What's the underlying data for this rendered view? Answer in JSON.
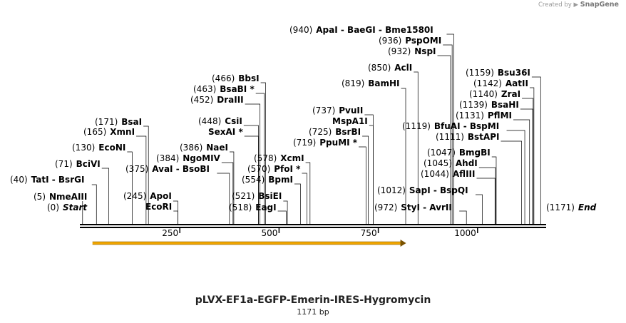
{
  "credit": {
    "prefix": "Created by",
    "brand": "SnapGene"
  },
  "plasmid": {
    "name": "pLVX-EF1a-EGFP-Emerin-IRES-Hygromycin",
    "length_label": "1171 bp"
  },
  "map": {
    "length": 1171,
    "ticks": [
      {
        "value": 250,
        "label": "250"
      },
      {
        "value": 500,
        "label": "500"
      },
      {
        "value": 750,
        "label": "750"
      },
      {
        "value": 1000,
        "label": "1000"
      }
    ],
    "feature": {
      "start": 30,
      "end": 820,
      "color": "#f0a500",
      "direction": "forward"
    },
    "labels": [
      {
        "pos": 0,
        "p": "(0)",
        "n": "Start",
        "style": "em"
      },
      {
        "pos": 5,
        "p": "(5)",
        "n": "NmeAIII"
      },
      {
        "pos": 40,
        "p": "(40)",
        "n": "TatI  -  BsrGI"
      },
      {
        "pos": 71,
        "p": "(71)",
        "n": "BciVI"
      },
      {
        "pos": 130,
        "p": "(130)",
        "n": "EcoNI"
      },
      {
        "pos": 165,
        "p": "(165)",
        "n": "XmnI"
      },
      {
        "pos": 171,
        "p": "(171)",
        "n": "BsaI"
      },
      {
        "pos": 245,
        "p": "(245)",
        "n": "ApoI"
      },
      {
        "pos": 245,
        "p": "",
        "n": "EcoRI"
      },
      {
        "pos": 375,
        "p": "(375)",
        "n": "AvaI  -  BsoBI"
      },
      {
        "pos": 384,
        "p": "(384)",
        "n": "NgoMIV"
      },
      {
        "pos": 386,
        "p": "(386)",
        "n": "NaeI"
      },
      {
        "pos": 448,
        "p": "(448)",
        "n": "CsiI"
      },
      {
        "pos": 448,
        "p": "",
        "n": "SexAI *"
      },
      {
        "pos": 452,
        "p": "(452)",
        "n": "DraIII"
      },
      {
        "pos": 463,
        "p": "(463)",
        "n": "BsaBI *"
      },
      {
        "pos": 466,
        "p": "(466)",
        "n": "BbsI"
      },
      {
        "pos": 518,
        "p": "(518)",
        "n": "EagI"
      },
      {
        "pos": 521,
        "p": "(521)",
        "n": "BsiEI"
      },
      {
        "pos": 554,
        "p": "(554)",
        "n": "BpmI"
      },
      {
        "pos": 570,
        "p": "(570)",
        "n": "PfoI *"
      },
      {
        "pos": 578,
        "p": "(578)",
        "n": "XcmI"
      },
      {
        "pos": 719,
        "p": "(719)",
        "n": "PpuMI *"
      },
      {
        "pos": 725,
        "p": "(725)",
        "n": "BsrBI"
      },
      {
        "pos": 737,
        "p": "",
        "n": "MspA1I"
      },
      {
        "pos": 737,
        "p": "(737)",
        "n": "PvuII"
      },
      {
        "pos": 819,
        "p": "(819)",
        "n": "BamHI"
      },
      {
        "pos": 850,
        "p": "(850)",
        "n": "AclI"
      },
      {
        "pos": 932,
        "p": "(932)",
        "n": "NspI"
      },
      {
        "pos": 936,
        "p": "(936)",
        "n": "PspOMI"
      },
      {
        "pos": 940,
        "p": "(940)",
        "n": "ApaI  -  BaeGI  -  Bme1580I"
      },
      {
        "pos": 972,
        "p": "(972)",
        "n": "StyI  -  AvrII"
      },
      {
        "pos": 1012,
        "p": "(1012)",
        "n": "SapI  -  BspQI"
      },
      {
        "pos": 1044,
        "p": "(1044)",
        "n": "AflIII"
      },
      {
        "pos": 1045,
        "p": "(1045)",
        "n": "AhdI"
      },
      {
        "pos": 1047,
        "p": "(1047)",
        "n": "BmgBI"
      },
      {
        "pos": 1111,
        "p": "(1111)",
        "n": "BstAPI"
      },
      {
        "pos": 1119,
        "p": "(1119)",
        "n": "BfuAI  -  BspMI"
      },
      {
        "pos": 1131,
        "p": "(1131)",
        "n": "PflMI"
      },
      {
        "pos": 1139,
        "p": "(1139)",
        "n": "BsaHI"
      },
      {
        "pos": 1140,
        "p": "(1140)",
        "n": "ZraI"
      },
      {
        "pos": 1142,
        "p": "(1142)",
        "n": "AatII"
      },
      {
        "pos": 1159,
        "p": "(1159)",
        "n": "Bsu36I"
      },
      {
        "pos": 1171,
        "p": "(1171)",
        "n": "End",
        "style": "em"
      }
    ]
  }
}
